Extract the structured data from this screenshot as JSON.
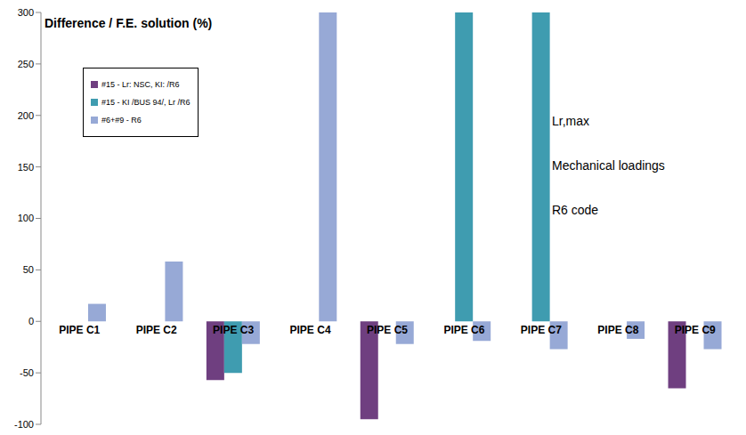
{
  "chart_data": {
    "type": "bar",
    "title": "Difference / F.E. solution (%)",
    "annotations": [
      "Lr,max",
      "Mechanical loadings",
      "R6 code"
    ],
    "categories": [
      "PIPE C1",
      "PIPE C2",
      "PIPE C3",
      "PIPE C4",
      "PIPE C5",
      "PIPE C6",
      "PIPE C7",
      "PIPE C8",
      "PIPE C9"
    ],
    "series": [
      {
        "name": "#15 - Lr: NSC, KI: /R6",
        "color": "#6f3f80",
        "values": [
          null,
          null,
          -57,
          null,
          -95,
          null,
          null,
          null,
          -65
        ]
      },
      {
        "name": "#15 - KI /BUS 94/, Lr /R6",
        "color": "#3f9cb0",
        "values": [
          null,
          null,
          -50,
          null,
          null,
          300,
          300,
          null,
          null
        ]
      },
      {
        "name": "#6+#9 - R6",
        "color": "#97a9d6",
        "values": [
          17,
          58,
          -22,
          300,
          -22,
          -19,
          -27,
          -17,
          -27
        ]
      }
    ],
    "ylim": [
      -100,
      300
    ],
    "yticks": [
      -100,
      -50,
      0,
      50,
      100,
      150,
      200,
      250,
      300
    ],
    "grid": false,
    "legend": "upper left"
  }
}
